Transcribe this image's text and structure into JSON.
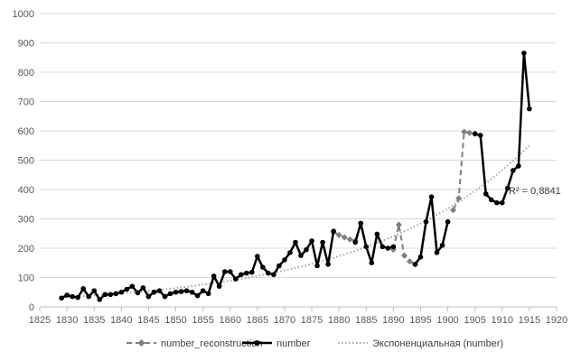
{
  "chart_data": {
    "type": "line",
    "title": "",
    "xlabel": "",
    "ylabel": "",
    "xlim": [
      1825,
      1920
    ],
    "ylim": [
      0,
      1000
    ],
    "x_ticks": [
      1825,
      1830,
      1835,
      1840,
      1845,
      1850,
      1855,
      1860,
      1865,
      1870,
      1875,
      1880,
      1885,
      1890,
      1895,
      1900,
      1905,
      1910,
      1915,
      1920
    ],
    "y_ticks": [
      0,
      100,
      200,
      300,
      400,
      500,
      600,
      700,
      800,
      900,
      1000
    ],
    "grid": "horizontal",
    "legend_position": "bottom",
    "colors": {
      "number": "#000000",
      "reconstruction": "#7f7f7f",
      "trend": "#a6a6a6",
      "grid": "#d9d9d9",
      "axis": "#bfbfbf"
    },
    "series": [
      {
        "name": "number_reconstruction",
        "style": "dashed",
        "marker": "diamond",
        "x": [
          1879,
          1880,
          1881,
          1882,
          1883
        ],
        "y": [
          255,
          245,
          237,
          230,
          225
        ],
        "segments": [
          {
            "x": [
              1890,
              1891,
              1892,
              1893,
              1894
            ],
            "y": [
              195,
              280,
              175,
              155,
              145
            ]
          },
          {
            "x": [
              1901,
              1902,
              1903,
              1904,
              1905
            ],
            "y": [
              330,
              370,
              597,
              593,
              590
            ]
          }
        ]
      },
      {
        "name": "number",
        "style": "solid",
        "marker": "circle",
        "x": [
          1829,
          1830,
          1831,
          1832,
          1833,
          1834,
          1835,
          1836,
          1837,
          1838,
          1839,
          1840,
          1841,
          1842,
          1843,
          1844,
          1845,
          1846,
          1847,
          1848,
          1849,
          1850,
          1851,
          1852,
          1853,
          1854,
          1855,
          1856,
          1857,
          1858,
          1859,
          1860,
          1861,
          1862,
          1863,
          1864,
          1865,
          1866,
          1867,
          1868,
          1869,
          1870,
          1871,
          1872,
          1873,
          1874,
          1875,
          1876,
          1877,
          1878,
          1879,
          null,
          1883,
          1884,
          1885,
          1886,
          1887,
          1888,
          1889,
          1890,
          null,
          1894,
          1895,
          1896,
          1897,
          1898,
          1899,
          1900,
          null,
          1905,
          1906,
          1907,
          1908,
          1909,
          1910,
          1911,
          1912,
          1913,
          1914,
          1915
        ],
        "y": [
          30,
          40,
          35,
          32,
          62,
          35,
          55,
          25,
          42,
          42,
          45,
          50,
          60,
          70,
          48,
          65,
          35,
          50,
          55,
          35,
          45,
          50,
          52,
          55,
          50,
          38,
          55,
          45,
          105,
          70,
          120,
          120,
          95,
          110,
          115,
          118,
          172,
          135,
          115,
          110,
          140,
          160,
          185,
          220,
          175,
          195,
          225,
          140,
          220,
          145,
          258,
          null,
          220,
          285,
          205,
          150,
          248,
          205,
          200,
          205,
          null,
          145,
          170,
          290,
          375,
          185,
          210,
          290,
          null,
          590,
          585,
          385,
          365,
          355,
          355,
          405,
          465,
          480,
          865,
          675
        ]
      },
      {
        "name": "Экспоненциальная (number)",
        "style": "dotted",
        "type": "trendline",
        "x": [
          1829,
          1915
        ],
        "y": [
          32,
          550
        ]
      }
    ],
    "annotations": [
      "R² = 0,8841"
    ]
  }
}
